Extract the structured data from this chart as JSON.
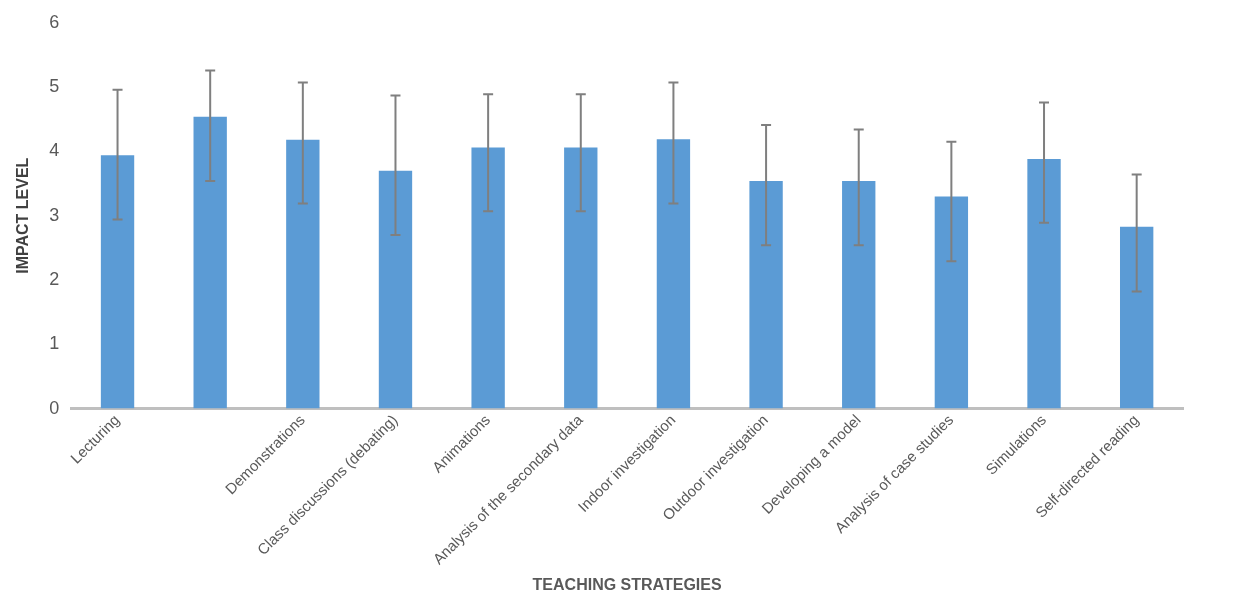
{
  "chart_data": {
    "type": "bar",
    "xlabel": "TEACHING STRATEGIES",
    "ylabel": "IMPACT LEVEL",
    "categories": [
      "Lecturing",
      null,
      "Demonstrations",
      "Class discussions (debating)",
      "Animations",
      "Analysis of the secondary data",
      "Indoor investigation",
      "Outdoor investigation",
      "Developing a model",
      "Analysis of case studies",
      "Simulations",
      "Self-directed reading"
    ],
    "values": [
      3.94,
      4.54,
      4.18,
      3.7,
      4.06,
      4.06,
      4.19,
      3.54,
      3.54,
      3.3,
      3.88,
      2.83
    ],
    "errors": [
      [
        2.94,
        4.96
      ],
      [
        3.54,
        5.26
      ],
      [
        3.19,
        5.07
      ],
      [
        2.7,
        4.87
      ],
      [
        3.07,
        4.89
      ],
      [
        3.07,
        4.89
      ],
      [
        3.19,
        5.07
      ],
      [
        2.54,
        4.41
      ],
      [
        2.54,
        4.34
      ],
      [
        2.29,
        4.15
      ],
      [
        2.89,
        4.76
      ],
      [
        1.82,
        3.64
      ]
    ],
    "color": "#5b9bd5",
    "ylim": [
      0,
      6
    ],
    "yticks": [
      0,
      1,
      2,
      3,
      4,
      5,
      6
    ],
    "grid": false,
    "legend": false
  }
}
